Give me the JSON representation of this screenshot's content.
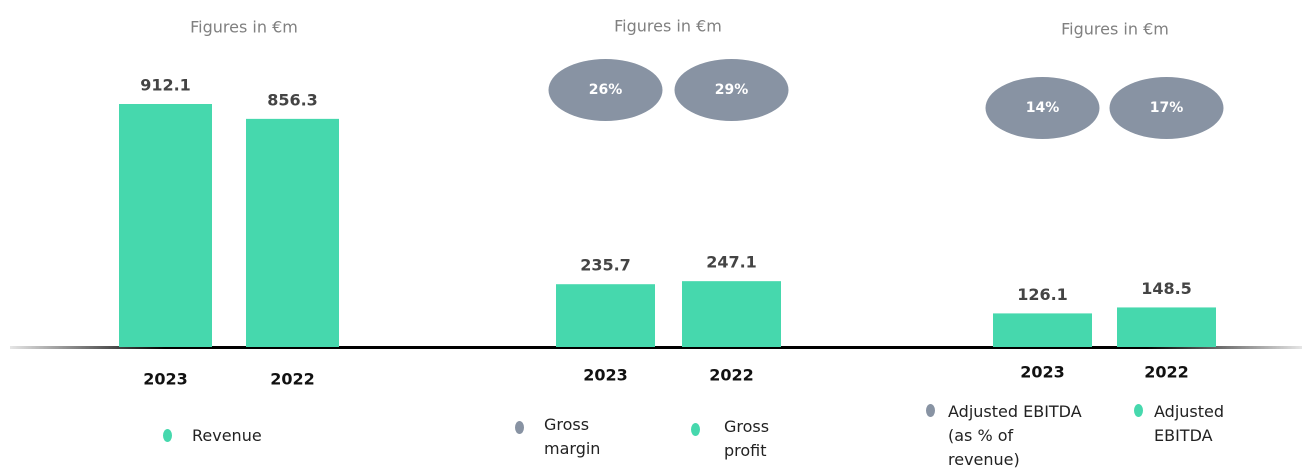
{
  "chart_data": [
    {
      "type": "bar",
      "subtitle": "Figures in €m",
      "categories": [
        "2023",
        "2022"
      ],
      "series": [
        {
          "name": "Revenue",
          "style": "bar",
          "color": "#46d8ad",
          "values": [
            912.1,
            856.3
          ]
        }
      ]
    },
    {
      "type": "bar",
      "subtitle": "Figures in €m",
      "categories": [
        "2023",
        "2022"
      ],
      "series": [
        {
          "name": "Gross margin",
          "style": "ellipse",
          "color": "#8893a3",
          "values": [
            26,
            29
          ],
          "value_labels": [
            "26%",
            "29%"
          ]
        },
        {
          "name": "Gross profit",
          "style": "bar",
          "color": "#46d8ad",
          "values": [
            235.7,
            247.1
          ]
        }
      ]
    },
    {
      "type": "bar",
      "subtitle": "Figures in €m",
      "categories": [
        "2023",
        "2022"
      ],
      "series": [
        {
          "name": "Adjusted EBITDA (as % of revenue)",
          "style": "ellipse",
          "color": "#8893a3",
          "values": [
            14,
            17
          ],
          "value_labels": [
            "14%",
            "17%"
          ]
        },
        {
          "name": "Adjusted EBITDA",
          "style": "bar",
          "color": "#46d8ad",
          "values": [
            126.1,
            148.5
          ]
        }
      ]
    }
  ]
}
